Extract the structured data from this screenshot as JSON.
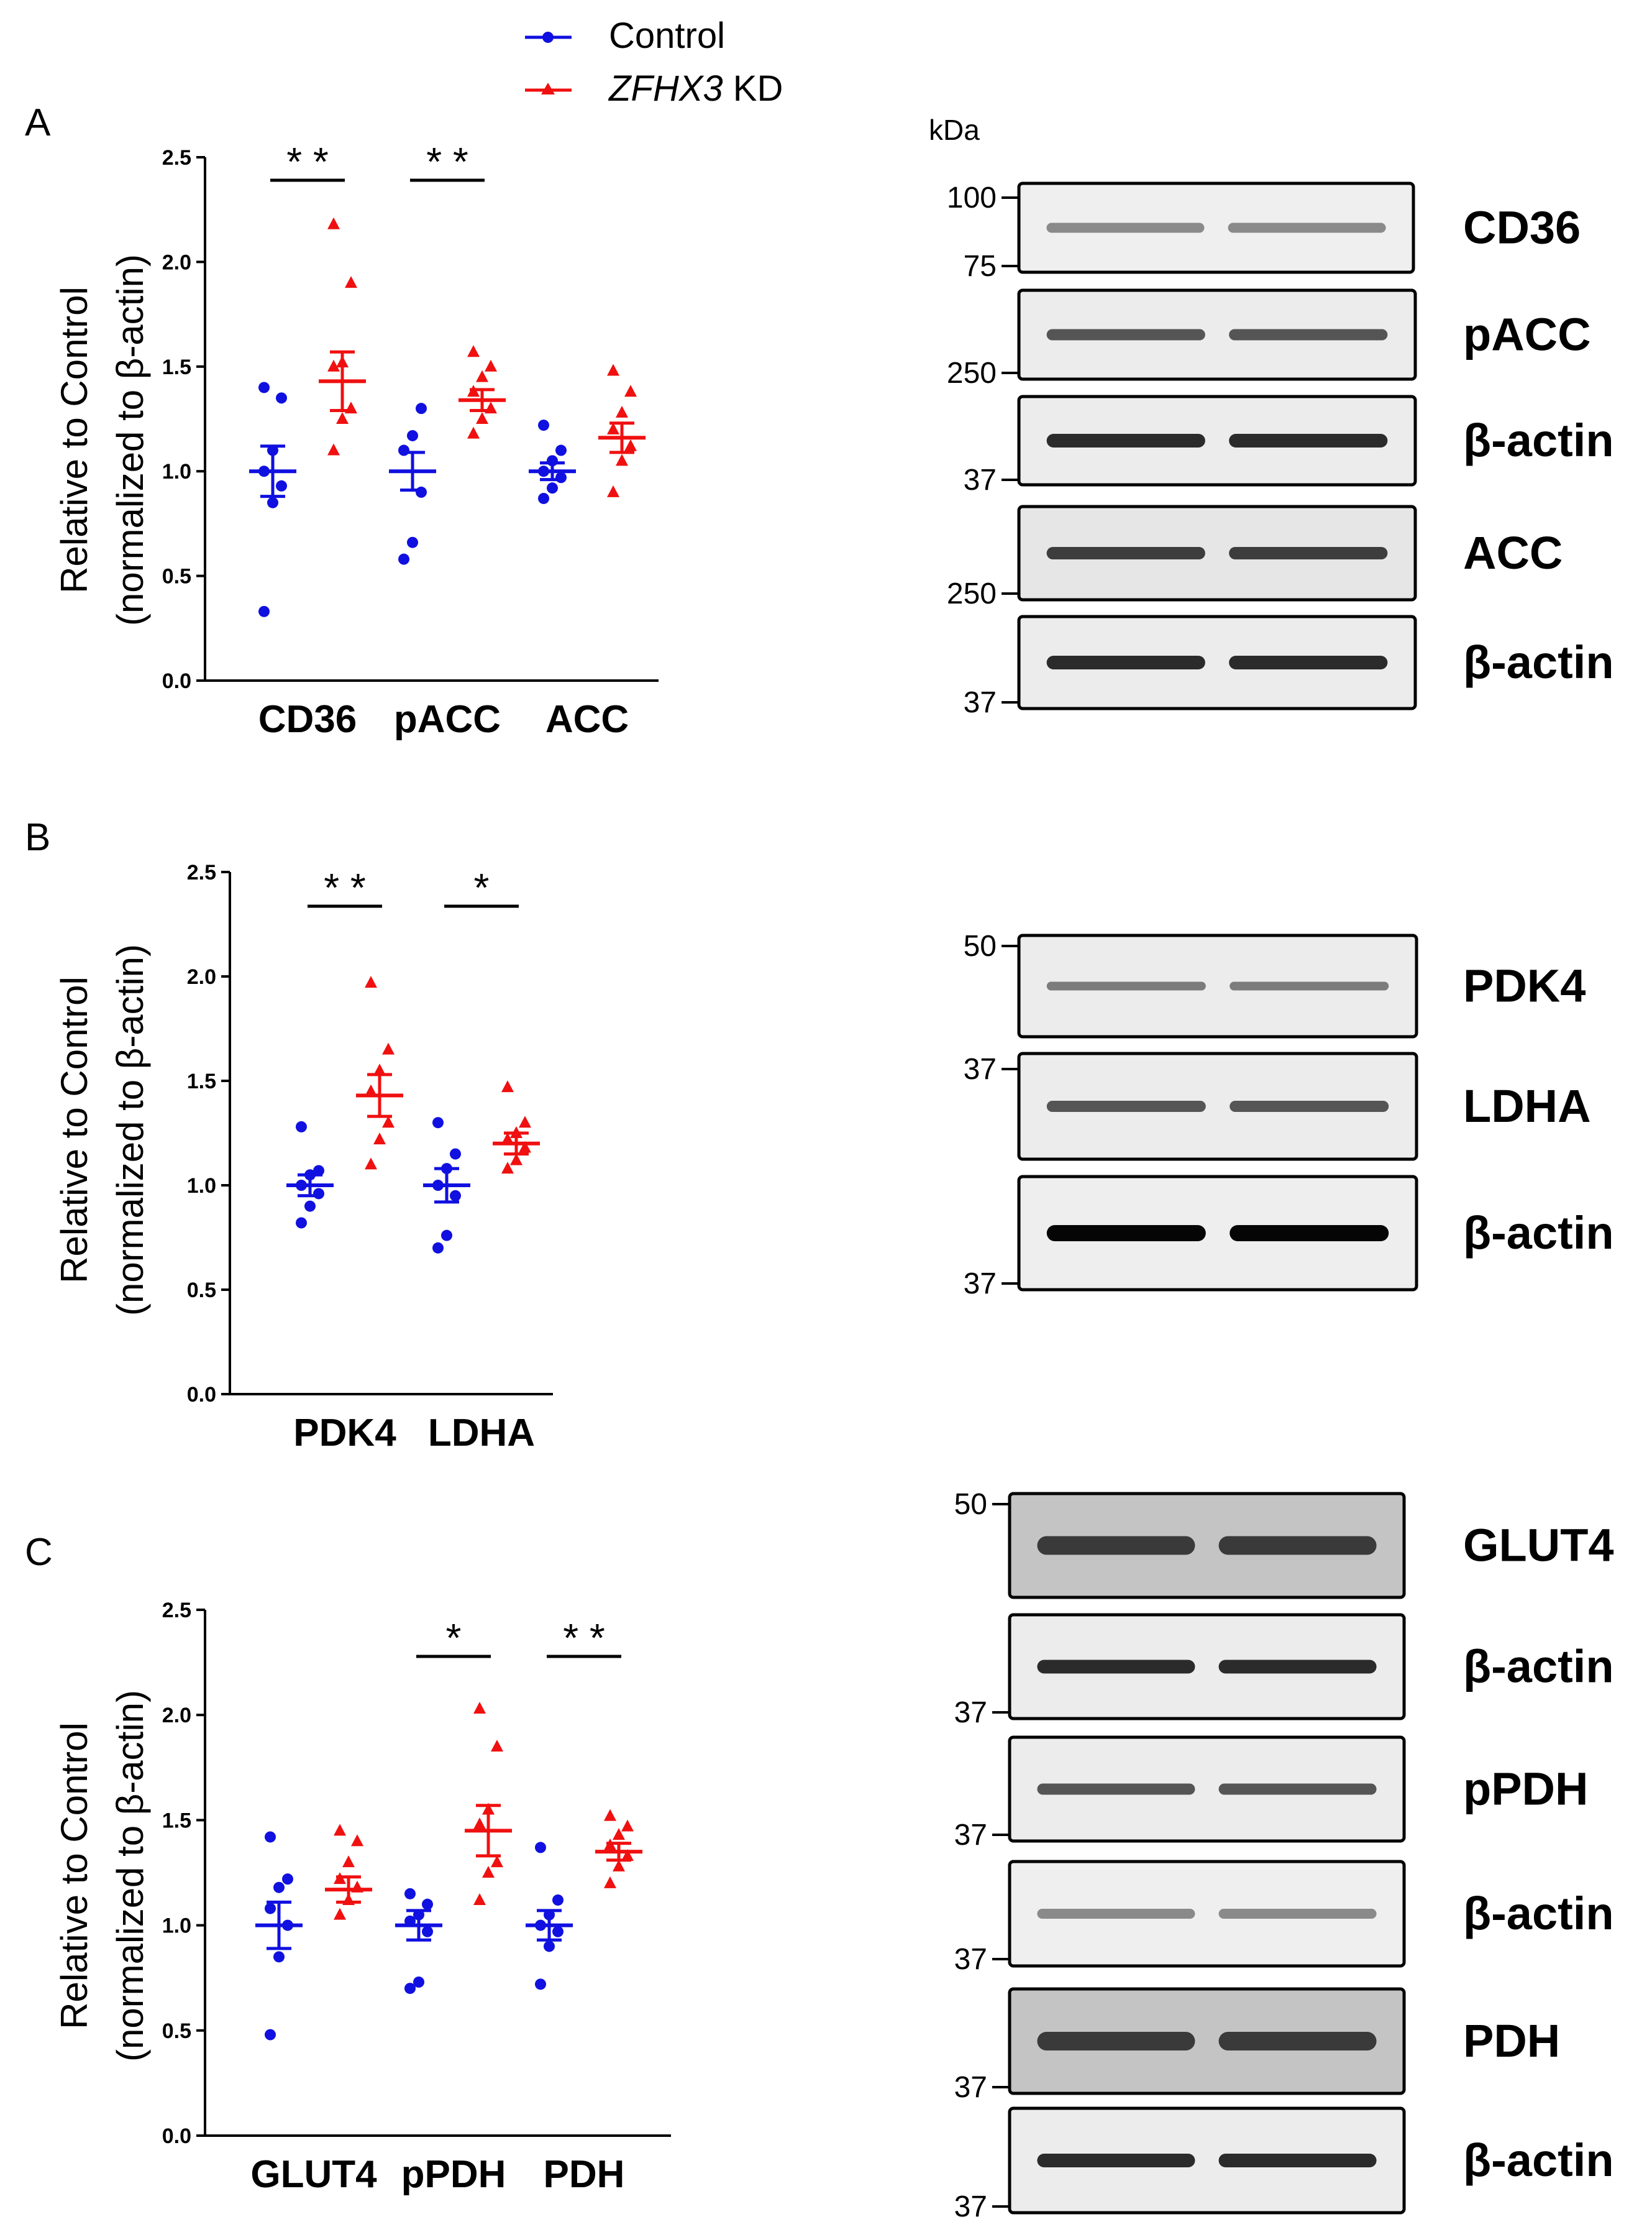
{
  "legend": {
    "control": "Control",
    "kd_gene": "ZFHX3",
    "kd_suffix": " KD",
    "control_color": "#1010e0",
    "kd_color": "#f01010"
  },
  "axis": {
    "ylabel_line1": "Relative to Control",
    "ylabel_line2": "(normalized to β-actin)",
    "ticks": [
      "0.0",
      "0.5",
      "1.0",
      "1.5",
      "2.0",
      "2.5"
    ],
    "ylim": [
      0,
      2.5
    ]
  },
  "panels": [
    {
      "label": "A",
      "categories": [
        "CD36",
        "pACC",
        "ACC"
      ],
      "sig": [
        "* *",
        "* *",
        ""
      ]
    },
    {
      "label": "B",
      "categories": [
        "PDK4",
        "LDHA"
      ],
      "sig": [
        "* *",
        "*"
      ]
    },
    {
      "label": "C",
      "categories": [
        "GLUT4",
        "pPDH",
        "PDH"
      ],
      "sig": [
        "",
        "*",
        "* *"
      ]
    }
  ],
  "chart_data": [
    {
      "type": "scatter",
      "title": "A",
      "ylabel": "Relative to Control (normalized to β-actin)",
      "ylim": [
        0,
        2.5
      ],
      "categories": [
        "CD36",
        "pACC",
        "ACC"
      ],
      "series": [
        {
          "name": "Control",
          "points": [
            [
              0.33,
              0.85,
              0.93,
              1.0,
              1.1,
              1.35,
              1.4
            ],
            [
              0.58,
              0.66,
              0.9,
              1.1,
              1.17,
              1.3
            ],
            [
              0.87,
              0.92,
              0.97,
              1.0,
              1.05,
              1.1,
              1.22
            ]
          ],
          "mean": [
            1.0,
            1.0,
            1.0
          ],
          "sem": [
            0.12,
            0.09,
            0.04
          ]
        },
        {
          "name": "ZFHX3 KD",
          "points": [
            [
              1.1,
              1.25,
              1.3,
              1.5,
              1.52,
              1.9,
              2.18
            ],
            [
              1.18,
              1.25,
              1.3,
              1.38,
              1.45,
              1.5,
              1.57
            ],
            [
              0.9,
              1.05,
              1.12,
              1.2,
              1.28,
              1.38,
              1.48
            ]
          ],
          "mean": [
            1.43,
            1.34,
            1.16
          ],
          "sem": [
            0.14,
            0.05,
            0.07
          ]
        }
      ]
    },
    {
      "type": "scatter",
      "title": "B",
      "ylabel": "Relative to Control (normalized to β-actin)",
      "ylim": [
        0,
        2.5
      ],
      "categories": [
        "PDK4",
        "LDHA"
      ],
      "series": [
        {
          "name": "Control",
          "points": [
            [
              0.82,
              0.9,
              0.96,
              1.0,
              1.05,
              1.07,
              1.28
            ],
            [
              0.7,
              0.76,
              0.95,
              1.0,
              1.08,
              1.15,
              1.3
            ]
          ],
          "mean": [
            1.0,
            1.0
          ],
          "sem": [
            0.05,
            0.08
          ]
        },
        {
          "name": "ZFHX3 KD",
          "points": [
            [
              1.1,
              1.22,
              1.3,
              1.45,
              1.55,
              1.65,
              1.97
            ],
            [
              1.08,
              1.12,
              1.18,
              1.22,
              1.25,
              1.3,
              1.47
            ]
          ],
          "mean": [
            1.43,
            1.2
          ],
          "sem": [
            0.1,
            0.05
          ]
        }
      ]
    },
    {
      "type": "scatter",
      "title": "C",
      "ylabel": "Relative to Control (normalized to β-actin)",
      "ylim": [
        0,
        2.5
      ],
      "categories": [
        "GLUT4",
        "pPDH",
        "PDH"
      ],
      "series": [
        {
          "name": "Control",
          "points": [
            [
              0.48,
              0.85,
              1.0,
              1.08,
              1.18,
              1.22,
              1.42
            ],
            [
              0.7,
              0.73,
              0.97,
              1.02,
              1.05,
              1.1,
              1.15
            ],
            [
              0.72,
              0.9,
              0.97,
              1.0,
              1.05,
              1.12,
              1.37
            ]
          ],
          "mean": [
            1.0,
            1.0,
            1.0
          ],
          "sem": [
            0.11,
            0.07,
            0.07
          ]
        },
        {
          "name": "ZFHX3 KD",
          "points": [
            [
              1.05,
              1.12,
              1.18,
              1.22,
              1.3,
              1.4,
              1.45
            ],
            [
              1.12,
              1.25,
              1.3,
              1.48,
              1.55,
              1.85,
              2.03
            ],
            [
              1.2,
              1.28,
              1.33,
              1.38,
              1.43,
              1.47,
              1.52
            ]
          ],
          "mean": [
            1.17,
            1.45,
            1.35
          ],
          "sem": [
            0.06,
            0.12,
            0.04
          ]
        }
      ]
    }
  ],
  "blots": {
    "kda": "kDa",
    "groups": [
      {
        "id": "A",
        "strips": [
          {
            "label": "CD36",
            "markers": [
              "100",
              "75"
            ],
            "style": "light2"
          },
          {
            "label": "pACC",
            "markers": [
              "250"
            ],
            "style": "med2"
          },
          {
            "label": "β-actin",
            "markers": [
              "37"
            ],
            "style": "dark2"
          },
          {
            "label": "ACC",
            "markers": [
              "250"
            ],
            "style": "med2d"
          },
          {
            "label": "β-actin",
            "markers": [
              "37"
            ],
            "style": "dark2"
          }
        ]
      },
      {
        "id": "B",
        "strips": [
          {
            "label": "PDK4",
            "markers": [
              "50"
            ],
            "style": "light2d"
          },
          {
            "label": "LDHA",
            "markers": [
              "37"
            ],
            "style": "med2"
          },
          {
            "label": "β-actin",
            "markers": [
              "37"
            ],
            "style": "black2"
          }
        ]
      },
      {
        "id": "C",
        "strips": [
          {
            "label": "GLUT4",
            "markers": [
              "50"
            ],
            "style": "grey2"
          },
          {
            "label": "β-actin",
            "markers": [
              "37"
            ],
            "style": "dark2"
          },
          {
            "label": "pPDH",
            "markers": [
              "37"
            ],
            "style": "med2"
          },
          {
            "label": "β-actin",
            "markers": [
              "37"
            ],
            "style": "light2"
          },
          {
            "label": "PDH",
            "markers": [
              "37"
            ],
            "style": "grey2"
          },
          {
            "label": "β-actin",
            "markers": [
              "37"
            ],
            "style": "dark2"
          }
        ]
      }
    ]
  }
}
